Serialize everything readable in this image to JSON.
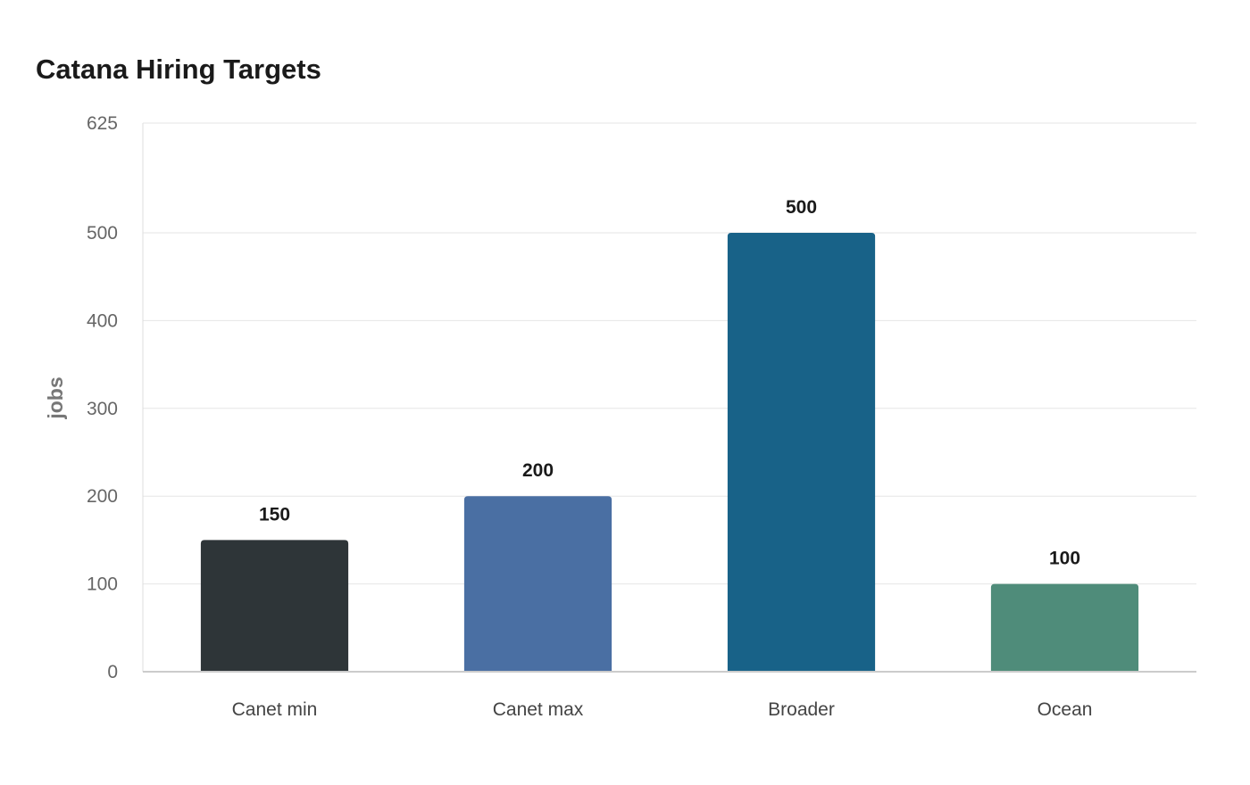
{
  "chart_data": {
    "type": "bar",
    "title": "Catana Hiring Targets",
    "xlabel": "",
    "ylabel": "jobs",
    "categories": [
      "Canet min",
      "Canet max",
      "Broader",
      "Ocean"
    ],
    "values": [
      150,
      200,
      500,
      100
    ],
    "colors": [
      "#2e3538",
      "#4a6fa3",
      "#186288",
      "#4f8c7a"
    ],
    "ylim": [
      0,
      625
    ],
    "yticks": [
      0,
      100,
      200,
      300,
      400,
      500,
      625
    ],
    "grid": true,
    "legend": "none",
    "data_labels": true
  }
}
